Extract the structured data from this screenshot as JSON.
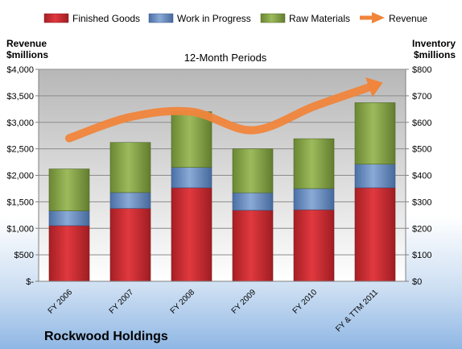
{
  "chart_data": {
    "type": "bar",
    "subtype": "stacked-bar-with-line",
    "title": "12-Month Periods",
    "company": "Rockwood Holdings",
    "left_axis_label": [
      "Revenue",
      "$millions"
    ],
    "right_axis_label": [
      "Inventory",
      "$millions"
    ],
    "categories": [
      "FY 2006",
      "FY 2007",
      "FY 2008",
      "FY 2009",
      "FY 2010",
      "FY & TTM 2011"
    ],
    "series": [
      {
        "name": "Finished Goods",
        "axis": "right",
        "color": "#c0282e",
        "values": [
          210,
          275,
          353,
          268,
          270,
          353
        ]
      },
      {
        "name": "Work in Progress",
        "axis": "right",
        "color": "#5b82bd",
        "values": [
          56,
          60,
          77,
          66,
          80,
          89
        ]
      },
      {
        "name": "Raw Materials",
        "axis": "right",
        "color": "#7b9a3c",
        "values": [
          158,
          189,
          210,
          166,
          188,
          232
        ]
      },
      {
        "name": "Revenue",
        "axis": "left",
        "type": "line",
        "color": "#f0853b",
        "values": [
          2700,
          3100,
          3200,
          2850,
          3300,
          3700
        ]
      }
    ],
    "left_axis": {
      "min": 0,
      "max": 4000,
      "ticks": [
        "$-",
        "$500",
        "$1,000",
        "$1,500",
        "$2,000",
        "$2,500",
        "$3,000",
        "$3,500",
        "$4,000"
      ]
    },
    "right_axis": {
      "min": 0,
      "max": 800,
      "ticks": [
        "$0",
        "$100",
        "$200",
        "$300",
        "$400",
        "$500",
        "$600",
        "$700",
        "$800"
      ]
    },
    "legend_position": "top",
    "grid": true
  }
}
